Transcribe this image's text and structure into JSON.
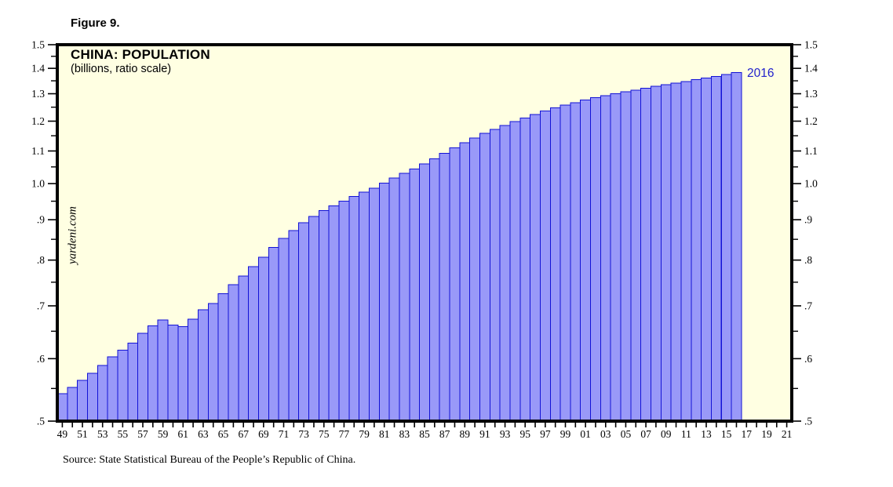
{
  "page": {
    "figure_label": "Figure 9.",
    "source_note": "Source: State Statistical Bureau of the People’s Republic of China."
  },
  "chart": {
    "title": "CHINA: POPULATION",
    "subtitle": "(billions, ratio scale)",
    "watermark": "yardeni.com",
    "annotation_label": "2016",
    "colors": {
      "plot_bg": "#FFFFE2",
      "bar_fill": "#9999F8",
      "bar_stroke": "#1212D6",
      "axis": "#000000",
      "annotation": "#2222CC"
    }
  },
  "chart_data": {
    "type": "bar",
    "title": "CHINA: POPULATION",
    "subtitle": "(billions, ratio scale)",
    "xlabel": "",
    "ylabel": "billions, ratio scale",
    "legend": "none",
    "grid": false,
    "y_axis": {
      "scale": "log",
      "range": [
        0.5,
        1.5
      ],
      "ticks": [
        1.5,
        1.4,
        1.3,
        1.2,
        1.1,
        1.0,
        0.9,
        0.8,
        0.7,
        0.6,
        0.5
      ],
      "tick_labels": [
        "1.5",
        "1.4",
        "1.3",
        "1.2",
        "1.1",
        "1.0",
        ".9",
        ".8",
        ".7",
        ".6",
        ".5"
      ],
      "minor_ticks": [
        1.45,
        1.35,
        1.25,
        1.15,
        1.05,
        0.95,
        0.85,
        0.75,
        0.65,
        0.55
      ],
      "labels_on_both_sides": true
    },
    "x_axis": {
      "range": [
        1948.5,
        2021.5
      ],
      "minor_tick_every_year": true,
      "label_years": [
        1949,
        1951,
        1953,
        1955,
        1957,
        1959,
        1961,
        1963,
        1965,
        1967,
        1969,
        1971,
        1973,
        1975,
        1977,
        1979,
        1981,
        1983,
        1985,
        1987,
        1989,
        1991,
        1993,
        1995,
        1997,
        1999,
        2001,
        2003,
        2005,
        2007,
        2009,
        2011,
        2013,
        2015,
        2017,
        2019,
        2021
      ],
      "label_texts": [
        "49",
        "51",
        "53",
        "55",
        "57",
        "59",
        "61",
        "63",
        "65",
        "67",
        "69",
        "71",
        "73",
        "75",
        "77",
        "79",
        "81",
        "83",
        "85",
        "87",
        "89",
        "91",
        "93",
        "95",
        "97",
        "99",
        "01",
        "03",
        "05",
        "07",
        "09",
        "11",
        "13",
        "15",
        "17",
        "19",
        "21"
      ]
    },
    "years": [
      1949,
      1950,
      1951,
      1952,
      1953,
      1954,
      1955,
      1956,
      1957,
      1958,
      1959,
      1960,
      1961,
      1962,
      1963,
      1964,
      1965,
      1966,
      1967,
      1968,
      1969,
      1970,
      1971,
      1972,
      1973,
      1974,
      1975,
      1976,
      1977,
      1978,
      1979,
      1980,
      1981,
      1982,
      1983,
      1984,
      1985,
      1986,
      1987,
      1988,
      1989,
      1990,
      1991,
      1992,
      1993,
      1994,
      1995,
      1996,
      1997,
      1998,
      1999,
      2000,
      2001,
      2002,
      2003,
      2004,
      2005,
      2006,
      2007,
      2008,
      2009,
      2010,
      2011,
      2012,
      2013,
      2014,
      2015,
      2016
    ],
    "values": [
      0.542,
      0.552,
      0.563,
      0.575,
      0.588,
      0.603,
      0.615,
      0.628,
      0.646,
      0.66,
      0.672,
      0.662,
      0.659,
      0.673,
      0.692,
      0.705,
      0.725,
      0.745,
      0.764,
      0.785,
      0.807,
      0.83,
      0.852,
      0.872,
      0.892,
      0.909,
      0.924,
      0.937,
      0.95,
      0.963,
      0.975,
      0.987,
      1.001,
      1.017,
      1.03,
      1.044,
      1.059,
      1.075,
      1.093,
      1.11,
      1.127,
      1.143,
      1.158,
      1.172,
      1.185,
      1.199,
      1.211,
      1.224,
      1.236,
      1.248,
      1.258,
      1.267,
      1.276,
      1.285,
      1.292,
      1.3,
      1.308,
      1.314,
      1.321,
      1.328,
      1.335,
      1.341,
      1.347,
      1.354,
      1.361,
      1.368,
      1.375,
      1.383
    ],
    "annotation": {
      "text": "2016",
      "year": 2016,
      "value": 1.383
    }
  }
}
